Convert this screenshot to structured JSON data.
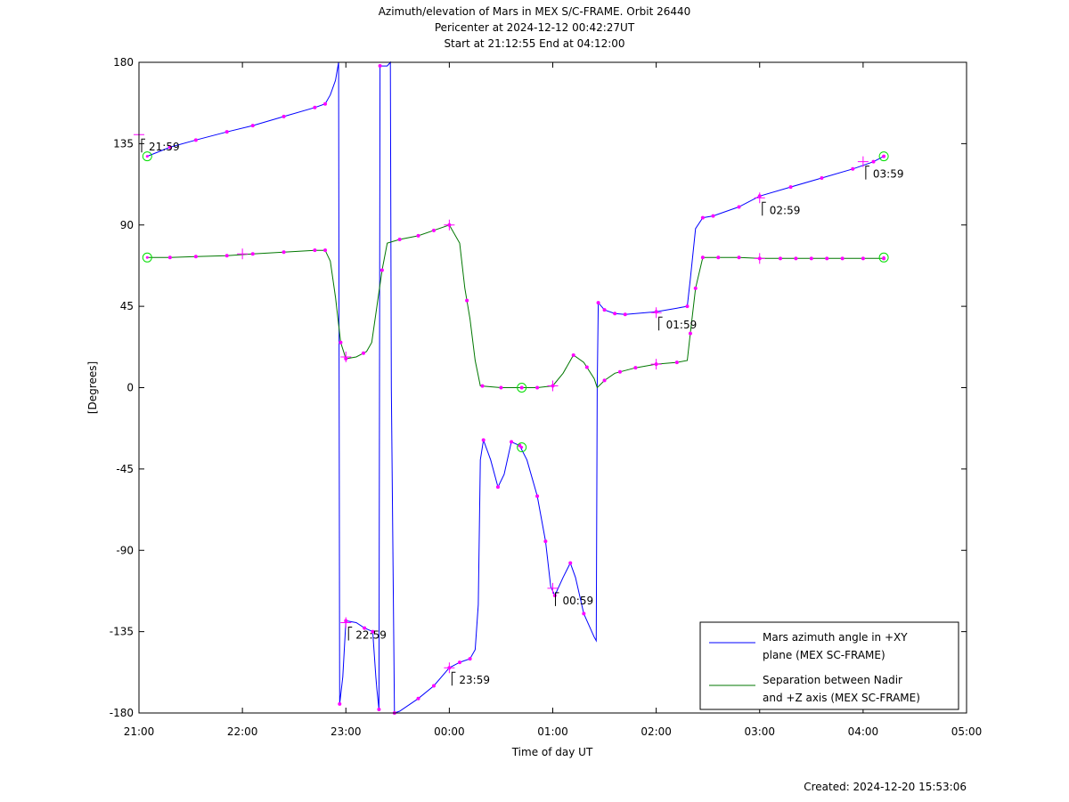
{
  "chart_data": {
    "type": "line",
    "title_lines": [
      "Azimuth/elevation of Mars in MEX S/C-FRAME.  Orbit 26440",
      "Pericenter at 2024-12-12 00:42:27UT",
      "Start at 21:12:55 End at 04:12:00"
    ],
    "xlabel": "Time of day UT",
    "ylabel": "[Degrees]",
    "x_unit": "hours since 21:00 UT",
    "xlim": [
      0,
      8
    ],
    "ylim": [
      -180,
      180
    ],
    "x_ticks": [
      {
        "v": 0,
        "label": "21:00"
      },
      {
        "v": 1,
        "label": "22:00"
      },
      {
        "v": 2,
        "label": "23:00"
      },
      {
        "v": 3,
        "label": "00:00"
      },
      {
        "v": 4,
        "label": "01:00"
      },
      {
        "v": 5,
        "label": "02:00"
      },
      {
        "v": 6,
        "label": "03:00"
      },
      {
        "v": 7,
        "label": "04:00"
      },
      {
        "v": 8,
        "label": "05:00"
      }
    ],
    "y_ticks": [
      {
        "v": 180,
        "label": "180"
      },
      {
        "v": 135,
        "label": "135"
      },
      {
        "v": 90,
        "label": "90"
      },
      {
        "v": 45,
        "label": "45"
      },
      {
        "v": 0,
        "label": "0"
      },
      {
        "v": -45,
        "label": "-45"
      },
      {
        "v": -90,
        "label": "-90"
      },
      {
        "v": -135,
        "label": "-135"
      },
      {
        "v": -180,
        "label": "-180"
      }
    ],
    "legend_position": "bottom-right",
    "series": [
      {
        "name": "Mars azimuth angle in +XY plane (MEX SC-FRAME)",
        "legend_lines": [
          "Mars azimuth angle in +XY",
          "plane (MEX SC-FRAME)"
        ],
        "color": "#0000ff",
        "points": [
          [
            0.08,
            128
          ],
          [
            0.3,
            133
          ],
          [
            0.55,
            137
          ],
          [
            0.85,
            141.5
          ],
          [
            1.1,
            145
          ],
          [
            1.4,
            150
          ],
          [
            1.7,
            155
          ],
          [
            1.8,
            157
          ],
          [
            1.85,
            162
          ],
          [
            1.9,
            170
          ],
          [
            1.93,
            180
          ],
          [
            1.935,
            0
          ],
          [
            1.94,
            -175
          ],
          [
            1.97,
            -160
          ],
          [
            2.0,
            -129
          ],
          [
            2.1,
            -130
          ],
          [
            2.18,
            -133
          ],
          [
            2.26,
            -135
          ],
          [
            2.29,
            -160
          ],
          [
            2.3,
            -167
          ],
          [
            2.32,
            -178
          ],
          [
            2.325,
            0
          ],
          [
            2.33,
            178
          ],
          [
            2.4,
            178
          ],
          [
            2.43,
            180
          ],
          [
            2.44,
            0
          ],
          [
            2.47,
            -180
          ],
          [
            2.52,
            -179
          ],
          [
            2.7,
            -172
          ],
          [
            2.85,
            -165
          ],
          [
            3.0,
            -155
          ],
          [
            3.1,
            -152
          ],
          [
            3.2,
            -150
          ],
          [
            3.25,
            -145
          ],
          [
            3.28,
            -120
          ],
          [
            3.3,
            -40
          ],
          [
            3.33,
            -29
          ],
          [
            3.4,
            -40
          ],
          [
            3.47,
            -55
          ],
          [
            3.53,
            -48
          ],
          [
            3.6,
            -30
          ],
          [
            3.68,
            -32
          ],
          [
            3.75,
            -40
          ],
          [
            3.85,
            -60
          ],
          [
            3.93,
            -85
          ],
          [
            3.98,
            -110
          ],
          [
            4.02,
            -115
          ],
          [
            4.1,
            -105
          ],
          [
            4.17,
            -97
          ],
          [
            4.22,
            -105
          ],
          [
            4.3,
            -125
          ],
          [
            4.4,
            -138
          ],
          [
            4.42,
            -140
          ],
          [
            4.43,
            0
          ],
          [
            4.44,
            47
          ],
          [
            4.5,
            43
          ],
          [
            4.6,
            41
          ],
          [
            4.7,
            40.5
          ],
          [
            5.0,
            42
          ],
          [
            5.2,
            44
          ],
          [
            5.3,
            45
          ],
          [
            5.33,
            60
          ],
          [
            5.38,
            88
          ],
          [
            5.45,
            94
          ],
          [
            5.55,
            95
          ],
          [
            5.8,
            100
          ],
          [
            6.0,
            106
          ],
          [
            6.3,
            111
          ],
          [
            6.6,
            116
          ],
          [
            6.9,
            121
          ],
          [
            7.1,
            125
          ],
          [
            7.2,
            128
          ]
        ],
        "markers": [
          0.3,
          0.55,
          0.85,
          1.1,
          1.4,
          1.7,
          1.8,
          1.94,
          2.0,
          2.18,
          2.26,
          2.32,
          2.33,
          2.47,
          2.7,
          2.85,
          3.0,
          3.1,
          3.2,
          3.33,
          3.47,
          3.6,
          3.68,
          3.85,
          3.93,
          4.02,
          4.17,
          4.3,
          4.44,
          4.5,
          4.6,
          4.7,
          5.0,
          5.3,
          5.45,
          5.55,
          5.8,
          6.0,
          6.3,
          6.6,
          6.9,
          7.1,
          7.2
        ]
      },
      {
        "name": "Separation between Nadir and +Z axis (MEX SC-FRAME)",
        "legend_lines": [
          "Separation between Nadir",
          "and +Z axis (MEX SC-FRAME)"
        ],
        "color": "#007700",
        "points": [
          [
            0.08,
            72
          ],
          [
            0.3,
            72
          ],
          [
            0.55,
            72.5
          ],
          [
            0.85,
            73
          ],
          [
            1.1,
            74
          ],
          [
            1.4,
            75
          ],
          [
            1.7,
            76
          ],
          [
            1.8,
            76
          ],
          [
            1.85,
            70
          ],
          [
            1.9,
            50
          ],
          [
            1.93,
            35
          ],
          [
            1.95,
            25
          ],
          [
            2.0,
            16
          ],
          [
            2.1,
            17
          ],
          [
            2.2,
            20
          ],
          [
            2.25,
            25
          ],
          [
            2.3,
            45
          ],
          [
            2.35,
            65
          ],
          [
            2.4,
            80
          ],
          [
            2.52,
            82
          ],
          [
            2.7,
            84
          ],
          [
            2.85,
            87
          ],
          [
            3.0,
            90
          ],
          [
            3.1,
            80
          ],
          [
            3.15,
            55
          ],
          [
            3.2,
            38
          ],
          [
            3.25,
            15
          ],
          [
            3.3,
            1
          ],
          [
            3.5,
            0
          ],
          [
            3.7,
            0
          ],
          [
            3.85,
            0
          ],
          [
            4.0,
            1
          ],
          [
            4.1,
            8
          ],
          [
            4.2,
            18
          ],
          [
            4.3,
            14
          ],
          [
            4.4,
            5
          ],
          [
            4.43,
            0
          ],
          [
            4.5,
            4
          ],
          [
            4.6,
            8
          ],
          [
            4.8,
            11
          ],
          [
            5.0,
            13
          ],
          [
            5.2,
            14
          ],
          [
            5.3,
            15
          ],
          [
            5.33,
            30
          ],
          [
            5.38,
            55
          ],
          [
            5.45,
            72
          ],
          [
            5.55,
            72
          ],
          [
            5.8,
            72
          ],
          [
            6.0,
            71.5
          ],
          [
            6.5,
            71.5
          ],
          [
            7.0,
            71.5
          ],
          [
            7.2,
            71.5
          ]
        ],
        "markers": [
          0.3,
          0.55,
          0.85,
          1.1,
          1.4,
          1.7,
          1.8,
          1.95,
          2.0,
          2.17,
          2.35,
          2.52,
          2.7,
          2.85,
          3.0,
          3.17,
          3.32,
          3.5,
          3.7,
          3.85,
          4.0,
          4.2,
          4.33,
          4.5,
          4.65,
          4.8,
          5.0,
          5.2,
          5.33,
          5.38,
          5.45,
          5.6,
          5.8,
          6.0,
          6.2,
          6.35,
          6.5,
          6.65,
          6.8,
          7.0,
          7.2
        ]
      }
    ],
    "orbit_markers": [
      {
        "series": 0,
        "x": 0.08,
        "y": 128
      },
      {
        "series": 0,
        "x": 7.2,
        "y": 128
      },
      {
        "series": 0,
        "x": 3.7,
        "y": -33
      },
      {
        "series": 1,
        "x": 0.08,
        "y": 72
      },
      {
        "series": 1,
        "x": 7.2,
        "y": 72
      },
      {
        "series": 1,
        "x": 3.7,
        "y": 0
      }
    ],
    "crosses": [
      {
        "x": 0.0,
        "y": 140
      },
      {
        "x": 6.0,
        "y": 105
      },
      {
        "x": 7.0,
        "y": 125
      },
      {
        "x": 5.0,
        "y": 41.5
      },
      {
        "x": 2.0,
        "y": -130
      },
      {
        "x": 3.0,
        "y": -155
      },
      {
        "x": 4.0,
        "y": -111
      },
      {
        "x": 1.0,
        "y": 74
      },
      {
        "x": 2.0,
        "y": 17
      },
      {
        "x": 3.0,
        "y": 90
      },
      {
        "x": 4.0,
        "y": 1
      },
      {
        "x": 5.0,
        "y": 13
      },
      {
        "x": 6.0,
        "y": 71.5
      }
    ],
    "annotations": [
      {
        "x": 0.0,
        "y": 140,
        "label": "21:59"
      },
      {
        "x": 2.0,
        "y": -130,
        "label": "22:59"
      },
      {
        "x": 3.0,
        "y": -155,
        "label": "23:59"
      },
      {
        "x": 4.0,
        "y": -111,
        "label": "00:59"
      },
      {
        "x": 5.0,
        "y": 41.5,
        "label": "01:59"
      },
      {
        "x": 6.0,
        "y": 105,
        "label": "02:59"
      },
      {
        "x": 7.0,
        "y": 125,
        "label": "03:59"
      }
    ],
    "created_text": "Created: 2024-12-20 15:53:06"
  }
}
